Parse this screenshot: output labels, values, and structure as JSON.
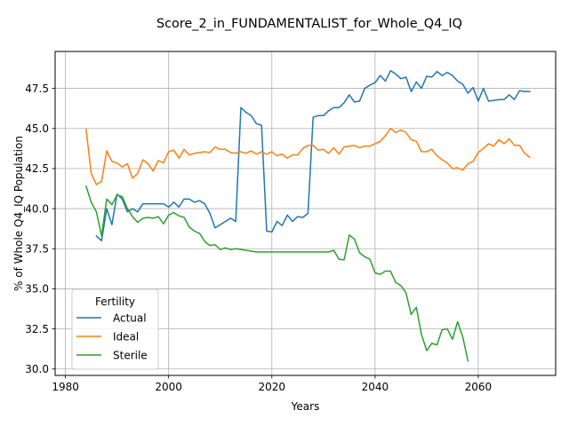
{
  "chart_data": {
    "type": "line",
    "title": "Score_2_in_FUNDAMENTALIST_for_Whole_Q4_IQ",
    "xlabel": "Years",
    "ylabel": "% of Whole Q4_IQ Population",
    "xlim": [
      1978,
      2075
    ],
    "ylim": [
      29.6,
      49.8
    ],
    "xticks": [
      1980,
      2000,
      2020,
      2040,
      2060
    ],
    "yticks": [
      30.0,
      32.5,
      35.0,
      37.5,
      40.0,
      42.5,
      45.0,
      47.5
    ],
    "grid": true,
    "legend": {
      "title": "Fertility",
      "position": "lower left"
    },
    "series": [
      {
        "name": "Actual",
        "color": "#1f77b4",
        "x": [
          1986,
          1987,
          1988,
          1989,
          1990,
          1991,
          1992,
          1993,
          1994,
          1995,
          1996,
          1997,
          1998,
          1999,
          2000,
          2001,
          2002,
          2003,
          2004,
          2005,
          2006,
          2007,
          2008,
          2009,
          2010,
          2011,
          2012,
          2013,
          2014,
          2015,
          2016,
          2017,
          2018,
          2019,
          2020,
          2021,
          2022,
          2023,
          2024,
          2025,
          2026,
          2027,
          2028,
          2029,
          2030,
          2031,
          2032,
          2033,
          2034,
          2035,
          2036,
          2037,
          2038,
          2039,
          2040,
          2041,
          2042,
          2043,
          2044,
          2045,
          2046,
          2047,
          2048,
          2049,
          2050,
          2051,
          2052,
          2053,
          2054,
          2055,
          2056,
          2057,
          2058,
          2059,
          2060,
          2061,
          2062,
          2063,
          2064,
          2065,
          2066,
          2067,
          2068,
          2069,
          2070
        ],
        "y": [
          38.3,
          38.0,
          40.0,
          39.0,
          40.9,
          40.6,
          39.8,
          40.0,
          39.8,
          40.3,
          40.3,
          40.3,
          40.3,
          40.3,
          40.1,
          40.4,
          40.1,
          40.6,
          40.6,
          40.4,
          40.5,
          40.3,
          39.7,
          38.8,
          39.0,
          39.2,
          39.4,
          39.2,
          46.3,
          46.0,
          45.8,
          45.3,
          45.2,
          38.6,
          38.55,
          39.2,
          38.95,
          39.6,
          39.2,
          39.5,
          39.45,
          39.7,
          45.7,
          45.8,
          45.8,
          46.1,
          46.3,
          46.3,
          46.6,
          47.1,
          46.65,
          46.7,
          47.5,
          47.7,
          47.85,
          48.3,
          47.95,
          48.6,
          48.4,
          48.1,
          48.2,
          47.3,
          47.9,
          47.5,
          48.25,
          48.2,
          48.55,
          48.3,
          48.5,
          48.3,
          47.95,
          47.75,
          47.2,
          47.55,
          46.7,
          47.5,
          46.7,
          46.75,
          46.8,
          46.8,
          47.1,
          46.8,
          47.35,
          47.3,
          47.3
        ]
      },
      {
        "name": "Ideal",
        "color": "#ff7f0e",
        "x": [
          1984,
          1985,
          1986,
          1987,
          1988,
          1989,
          1990,
          1991,
          1992,
          1993,
          1994,
          1995,
          1996,
          1997,
          1998,
          1999,
          2000,
          2001,
          2002,
          2003,
          2004,
          2005,
          2006,
          2007,
          2008,
          2009,
          2010,
          2011,
          2012,
          2013,
          2014,
          2015,
          2016,
          2017,
          2018,
          2019,
          2020,
          2021,
          2022,
          2023,
          2024,
          2025,
          2026,
          2027,
          2028,
          2029,
          2030,
          2031,
          2032,
          2033,
          2034,
          2035,
          2036,
          2037,
          2038,
          2039,
          2040,
          2041,
          2042,
          2043,
          2044,
          2045,
          2046,
          2047,
          2048,
          2049,
          2050,
          2051,
          2052,
          2053,
          2054,
          2055,
          2056,
          2057,
          2058,
          2059,
          2060,
          2061,
          2062,
          2063,
          2064,
          2065,
          2066,
          2067,
          2068,
          2069,
          2070
        ],
        "y": [
          44.95,
          42.2,
          41.5,
          41.7,
          43.6,
          42.95,
          42.85,
          42.6,
          42.8,
          41.9,
          42.2,
          43.05,
          42.8,
          42.35,
          43.0,
          42.85,
          43.55,
          43.65,
          43.15,
          43.7,
          43.35,
          43.45,
          43.5,
          43.55,
          43.5,
          43.85,
          43.7,
          43.7,
          43.5,
          43.45,
          43.55,
          43.45,
          43.6,
          43.4,
          43.55,
          43.4,
          43.55,
          43.3,
          43.4,
          43.15,
          43.35,
          43.35,
          43.75,
          43.95,
          43.95,
          43.65,
          43.7,
          43.45,
          43.8,
          43.4,
          43.85,
          43.9,
          43.95,
          43.8,
          43.9,
          43.9,
          44.05,
          44.2,
          44.55,
          45.0,
          44.75,
          44.9,
          44.75,
          44.3,
          44.2,
          43.55,
          43.55,
          43.7,
          43.3,
          43.05,
          42.85,
          42.5,
          42.55,
          42.4,
          42.8,
          42.95,
          43.5,
          43.75,
          44.05,
          43.9,
          44.3,
          44.05,
          44.35,
          43.95,
          43.95,
          43.45,
          43.2
        ]
      },
      {
        "name": "Sterile",
        "color": "#2ca02c",
        "x": [
          1984,
          1985,
          1986,
          1987,
          1988,
          1989,
          1990,
          1991,
          1992,
          1993,
          1994,
          1995,
          1996,
          1997,
          1998,
          1999,
          2000,
          2001,
          2002,
          2003,
          2004,
          2005,
          2006,
          2007,
          2008,
          2009,
          2010,
          2011,
          2012,
          2013,
          2014,
          2015,
          2016,
          2017,
          2018,
          2019,
          2020,
          2021,
          2022,
          2023,
          2024,
          2025,
          2026,
          2027,
          2028,
          2029,
          2030,
          2031,
          2032,
          2033,
          2034,
          2035,
          2036,
          2037,
          2038,
          2039,
          2040,
          2041,
          2042,
          2043,
          2044,
          2045,
          2046,
          2047,
          2048,
          2049,
          2050,
          2051,
          2052,
          2053,
          2054,
          2055,
          2056,
          2057,
          2058
        ],
        "y": [
          41.4,
          40.4,
          39.8,
          38.3,
          40.6,
          40.25,
          40.85,
          40.75,
          40.0,
          39.5,
          39.15,
          39.4,
          39.45,
          39.4,
          39.5,
          39.05,
          39.6,
          39.75,
          39.55,
          39.45,
          38.85,
          38.6,
          38.45,
          37.95,
          37.7,
          37.75,
          37.45,
          37.55,
          37.45,
          37.5,
          37.45,
          37.4,
          37.35,
          37.3,
          37.3,
          37.3,
          37.3,
          37.3,
          37.3,
          37.3,
          37.3,
          37.3,
          37.3,
          37.3,
          37.3,
          37.3,
          37.3,
          37.3,
          37.4,
          36.85,
          36.8,
          38.35,
          38.1,
          37.25,
          37.0,
          36.85,
          36.0,
          35.9,
          36.1,
          36.1,
          35.4,
          35.2,
          34.75,
          33.4,
          33.85,
          32.15,
          31.15,
          31.6,
          31.5,
          32.45,
          32.5,
          31.85,
          32.95,
          32.0,
          30.5
        ]
      }
    ]
  }
}
